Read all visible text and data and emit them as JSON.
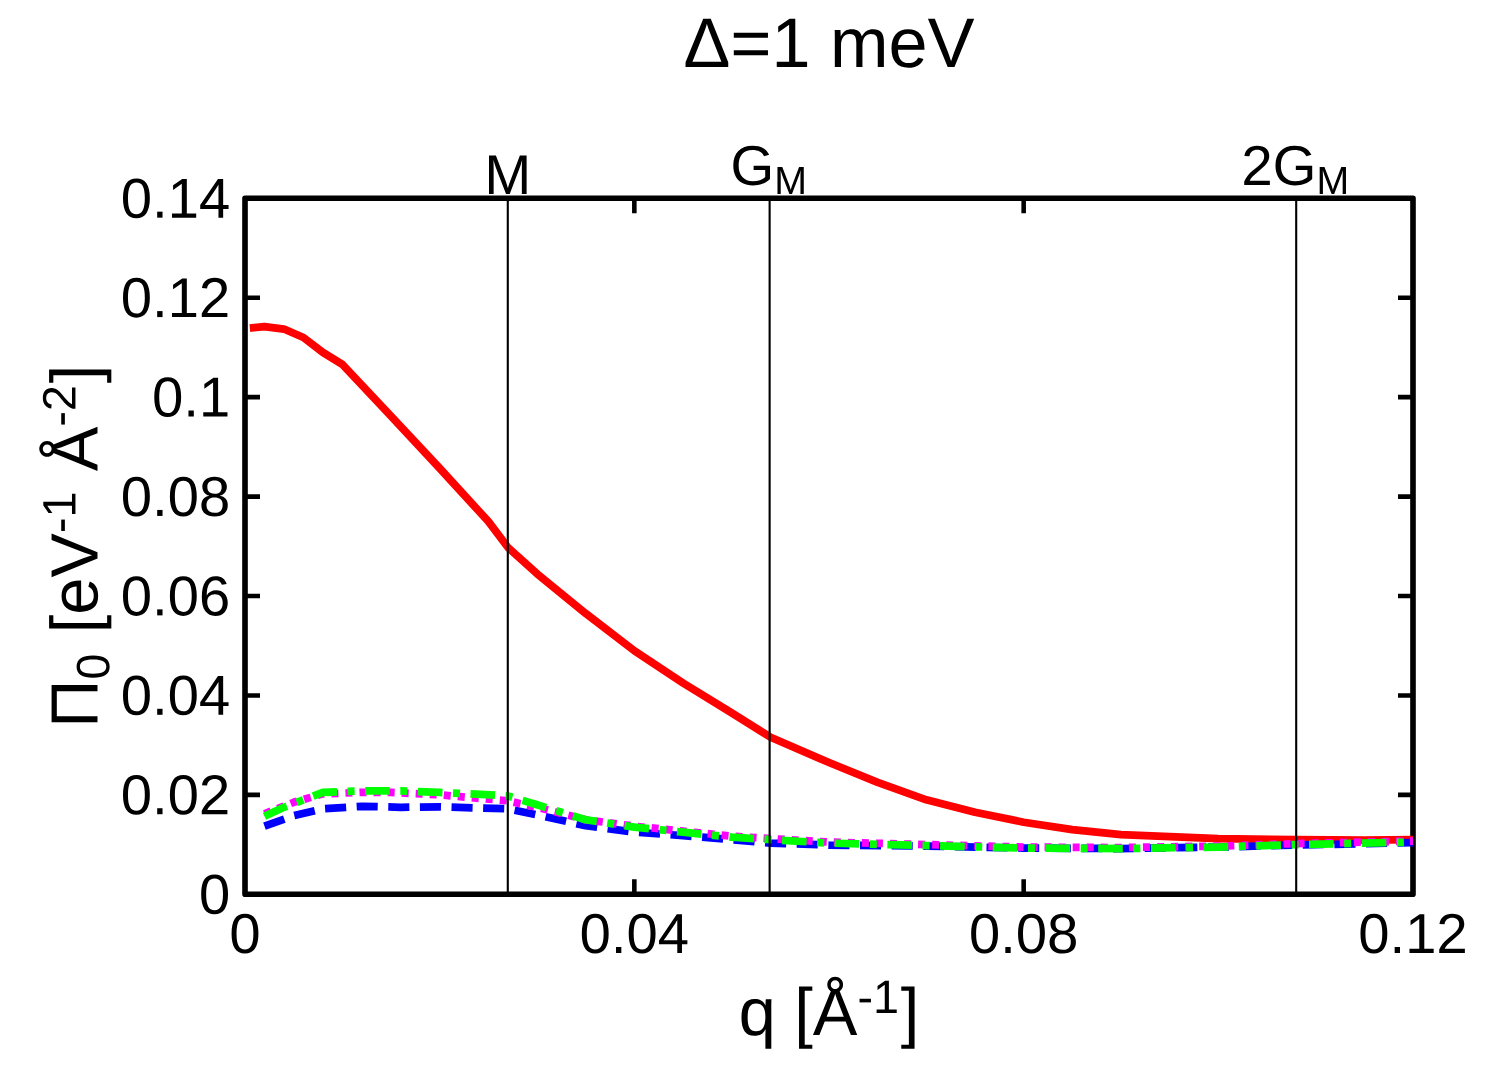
{
  "chart_data": {
    "type": "line",
    "title": "Δ=1 meV",
    "xlabel": "q [Å$^{-1}$]",
    "ylabel": "Π$_{0}$  [eV$^{-1}$ Å$^{-2}$]",
    "xlim": [
      0,
      0.12
    ],
    "ylim": [
      0,
      0.14
    ],
    "xticks": [
      0,
      0.04,
      0.08,
      0.12
    ],
    "yticks": [
      0,
      0.02,
      0.04,
      0.06,
      0.08,
      0.1,
      0.12,
      0.14
    ],
    "ref_lines": [
      {
        "axis": "x",
        "value": 0.027,
        "label": "M",
        "color": "#000000"
      },
      {
        "axis": "x",
        "value": 0.0539,
        "label": "G$_{M}$",
        "color": "#000000"
      },
      {
        "axis": "x",
        "value": 0.108,
        "label": "2G$_{M}$",
        "color": "#000000"
      }
    ],
    "series": [
      {
        "color": "#ff0000",
        "line_style": "solid",
        "x": [
          0.0005,
          0.002,
          0.004,
          0.006,
          0.008,
          0.01,
          0.015,
          0.02,
          0.025,
          0.027,
          0.03,
          0.035,
          0.04,
          0.045,
          0.05,
          0.054,
          0.06,
          0.065,
          0.07,
          0.075,
          0.08,
          0.085,
          0.09,
          0.1,
          0.108,
          0.115,
          0.12
        ],
        "values": [
          0.1139,
          0.1142,
          0.1137,
          0.112,
          0.109,
          0.1066,
          0.0962,
          0.0857,
          0.075,
          0.0698,
          0.0645,
          0.0565,
          0.049,
          0.0425,
          0.0365,
          0.0316,
          0.0265,
          0.0225,
          0.019,
          0.0165,
          0.0145,
          0.013,
          0.012,
          0.0112,
          0.011,
          0.0109,
          0.011
        ]
      },
      {
        "color": "#0000ff",
        "line_style": "dashed",
        "x": [
          0.002,
          0.005,
          0.008,
          0.012,
          0.016,
          0.02,
          0.027,
          0.03,
          0.035,
          0.04,
          0.045,
          0.05,
          0.054,
          0.06,
          0.07,
          0.08,
          0.09,
          0.1,
          0.108,
          0.12
        ],
        "values": [
          0.0137,
          0.0158,
          0.0172,
          0.0177,
          0.0175,
          0.0176,
          0.0172,
          0.016,
          0.0138,
          0.0125,
          0.0118,
          0.011,
          0.0103,
          0.0099,
          0.0097,
          0.0093,
          0.0092,
          0.0095,
          0.0099,
          0.0104
        ]
      },
      {
        "color": "#ff00ff",
        "line_style": "dotted",
        "x": [
          0.002,
          0.005,
          0.008,
          0.012,
          0.015,
          0.02,
          0.027,
          0.03,
          0.035,
          0.04,
          0.045,
          0.05,
          0.054,
          0.06,
          0.07,
          0.08,
          0.09,
          0.1,
          0.108,
          0.12
        ],
        "values": [
          0.0162,
          0.0185,
          0.0202,
          0.0205,
          0.0205,
          0.02,
          0.0188,
          0.0175,
          0.015,
          0.0137,
          0.0127,
          0.0117,
          0.0112,
          0.0105,
          0.01,
          0.0095,
          0.0094,
          0.0097,
          0.0102,
          0.0107
        ]
      },
      {
        "color": "#00ff00",
        "line_style": "dashdot",
        "x": [
          0.002,
          0.004,
          0.008,
          0.012,
          0.016,
          0.02,
          0.027,
          0.03,
          0.035,
          0.04,
          0.045,
          0.05,
          0.054,
          0.06,
          0.07,
          0.08,
          0.09,
          0.1,
          0.108,
          0.12
        ],
        "values": [
          0.0157,
          0.0175,
          0.0205,
          0.0208,
          0.0208,
          0.0205,
          0.0198,
          0.018,
          0.015,
          0.0135,
          0.0125,
          0.0115,
          0.011,
          0.0103,
          0.0098,
          0.0093,
          0.0092,
          0.0095,
          0.01,
          0.0105
        ]
      }
    ]
  }
}
